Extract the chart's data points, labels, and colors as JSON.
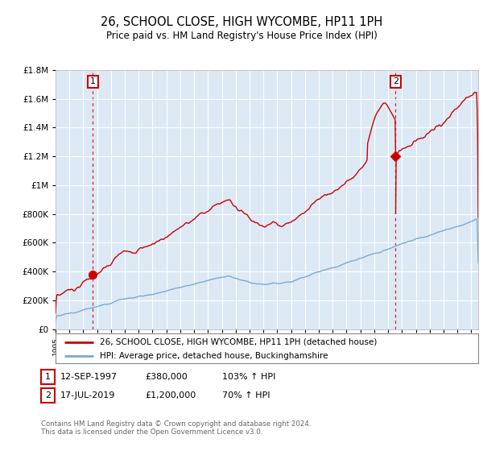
{
  "title": "26, SCHOOL CLOSE, HIGH WYCOMBE, HP11 1PH",
  "subtitle": "Price paid vs. HM Land Registry's House Price Index (HPI)",
  "legend_line1": "26, SCHOOL CLOSE, HIGH WYCOMBE, HP11 1PH (detached house)",
  "legend_line2": "HPI: Average price, detached house, Buckinghamshire",
  "footnote": "Contains HM Land Registry data © Crown copyright and database right 2024.\nThis data is licensed under the Open Government Licence v3.0.",
  "sale1_date": "12-SEP-1997",
  "sale1_price": "£380,000",
  "sale1_hpi": "103% ↑ HPI",
  "sale1_year": 1997.7,
  "sale1_value": 380000,
  "sale2_date": "17-JUL-2019",
  "sale2_price": "£1,200,000",
  "sale2_hpi": "70% ↑ HPI",
  "sale2_year": 2019.54,
  "sale2_value": 1200000,
  "ylim": [
    0,
    1800000
  ],
  "xlim": [
    1995,
    2025.5
  ],
  "red_color": "#cc0000",
  "blue_color": "#7aaad0",
  "plot_bg_color": "#dce9f5",
  "background_color": "#ffffff",
  "grid_color": "#ffffff"
}
